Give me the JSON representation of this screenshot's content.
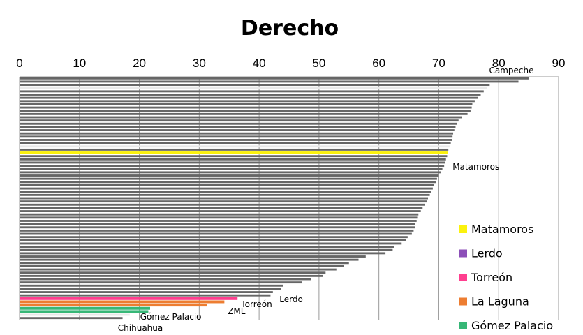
{
  "chart_data": {
    "type": "bar",
    "orientation": "horizontal",
    "title": "Derecho",
    "xlim": [
      0,
      90
    ],
    "xticks": [
      0,
      10,
      20,
      30,
      40,
      50,
      60,
      70,
      80,
      90
    ],
    "xtick_labels": [
      "0",
      "10",
      "20",
      "30",
      "40",
      "50",
      "60",
      "70",
      "80",
      "90"
    ],
    "grid": true,
    "legend_position": "bottom-right",
    "values": [
      85,
      83.3,
      78.5,
      78,
      77.5,
      77,
      76.5,
      76,
      75.6,
      75.5,
      75.3,
      74.8,
      73.8,
      73.3,
      73,
      72.8,
      72.6,
      72.4,
      72.3,
      72.2,
      72,
      71.8,
      71.6,
      71.5,
      71.4,
      71.2,
      71,
      70.9,
      70.6,
      70.4,
      70,
      69.7,
      69.5,
      69.2,
      69,
      68.7,
      68.5,
      68.2,
      68,
      67.7,
      67.3,
      67,
      66.6,
      66.4,
      66.3,
      66.1,
      66,
      65.8,
      65.5,
      64.8,
      64.5,
      63.8,
      62.5,
      62.3,
      61.1,
      57.8,
      56.6,
      55,
      54.2,
      52.9,
      51.1,
      50.7,
      48.7,
      47.2,
      44,
      43.6,
      42.3,
      41.9,
      36.4,
      34.2,
      31.3,
      21.8,
      21.5,
      18.4,
      17.2
    ],
    "highlight_colors": {
      "3": "#e8e8e8",
      "21": "#e8e8e8",
      "23": "#fbf20e",
      "68": "#ff3f8f",
      "69": "#ed7d31",
      "70": "#ed7d31",
      "71": "#37b777",
      "72": "#37b777",
      "73": "#e8e8e8"
    },
    "default_color": "#666666",
    "annotations": [
      {
        "text": "Campeche",
        "x": 83.3
      },
      {
        "text": "Matamoros",
        "x": 73
      },
      {
        "text": "Lerdo",
        "x": 42
      },
      {
        "text": "Torreón",
        "x": 37
      },
      {
        "text": "ZML",
        "x": 35
      },
      {
        "text": "Gómez Palacio",
        "x": 22
      },
      {
        "text": "Chihuahua",
        "x": 17
      }
    ],
    "legend": [
      {
        "label": "Matamoros",
        "color": "#fbf20e"
      },
      {
        "label": "Lerdo",
        "color": "#8c4fb8"
      },
      {
        "label": "Torreón",
        "color": "#ff3f8f"
      },
      {
        "label": "La Laguna",
        "color": "#ed7d31"
      },
      {
        "label": "Gómez Palacio",
        "color": "#37b777"
      }
    ]
  }
}
